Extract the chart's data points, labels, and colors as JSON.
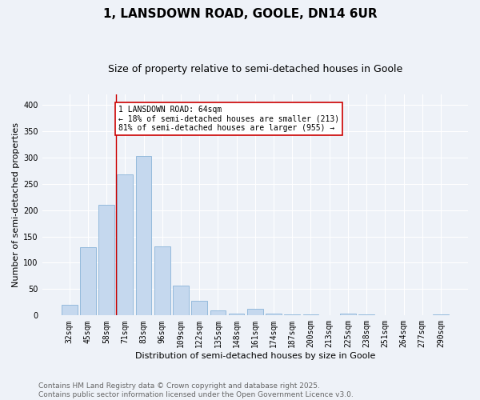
{
  "title": "1, LANSDOWN ROAD, GOOLE, DN14 6UR",
  "subtitle": "Size of property relative to semi-detached houses in Goole",
  "xlabel": "Distribution of semi-detached houses by size in Goole",
  "ylabel": "Number of semi-detached properties",
  "categories": [
    "32sqm",
    "45sqm",
    "58sqm",
    "71sqm",
    "83sqm",
    "96sqm",
    "109sqm",
    "122sqm",
    "135sqm",
    "148sqm",
    "161sqm",
    "174sqm",
    "187sqm",
    "200sqm",
    "213sqm",
    "225sqm",
    "238sqm",
    "251sqm",
    "264sqm",
    "277sqm",
    "290sqm"
  ],
  "values": [
    20,
    130,
    210,
    268,
    303,
    131,
    57,
    28,
    10,
    4,
    13,
    3,
    2,
    2,
    0,
    4,
    2,
    1,
    0,
    0,
    2
  ],
  "bar_color": "#c5d8ee",
  "bar_edge_color": "#8ab4d8",
  "vline_x_index": 2.5,
  "vline_color": "#cc0000",
  "annotation_title": "1 LANSDOWN ROAD: 64sqm",
  "annotation_line1": "← 18% of semi-detached houses are smaller (213)",
  "annotation_line2": "81% of semi-detached houses are larger (955) →",
  "annotation_box_color": "#cc0000",
  "ylim": [
    0,
    420
  ],
  "yticks": [
    0,
    50,
    100,
    150,
    200,
    250,
    300,
    350,
    400
  ],
  "footnote1": "Contains HM Land Registry data © Crown copyright and database right 2025.",
  "footnote2": "Contains public sector information licensed under the Open Government Licence v3.0.",
  "bg_color": "#eef2f8",
  "plot_bg_color": "#eef2f8",
  "grid_color": "#ffffff",
  "title_fontsize": 11,
  "subtitle_fontsize": 9,
  "axis_label_fontsize": 8,
  "tick_fontsize": 7,
  "annotation_fontsize": 7,
  "footnote_fontsize": 6.5
}
